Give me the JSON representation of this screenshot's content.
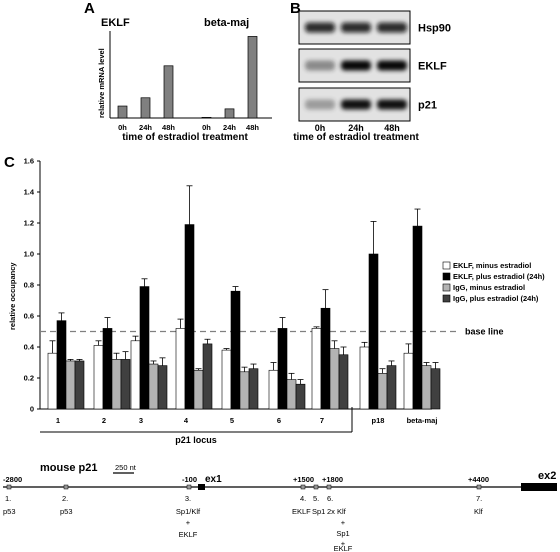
{
  "panel_labels": {
    "a": "A",
    "b": "B",
    "c": "C"
  },
  "chart_data": [
    {
      "type": "bar",
      "panel": "A",
      "groups": [
        {
          "name": "EKLF",
          "categories": [
            "0h",
            "24h",
            "48h"
          ],
          "values": [
            0.55,
            0.93,
            2.4
          ]
        },
        {
          "name": "beta-maj",
          "categories": [
            "0h",
            "24h",
            "48h"
          ],
          "values": [
            0.03,
            0.42,
            3.75
          ]
        }
      ],
      "xlabel": "time of estradiol treatment",
      "ylabel": "relative mRNA level",
      "ylim": [
        0,
        4
      ],
      "color": "#808080"
    },
    {
      "type": "bar",
      "panel": "C",
      "categories": [
        "1",
        "2",
        "3",
        "4",
        "5",
        "6",
        "7",
        "p18",
        "beta-maj"
      ],
      "series": [
        {
          "name": "EKLF, minus estradiol",
          "color": "#ffffff",
          "values": [
            0.36,
            0.41,
            0.44,
            0.52,
            0.38,
            0.25,
            0.52,
            0.4,
            0.36
          ],
          "errors": [
            0.08,
            0.03,
            0.03,
            0.06,
            0.01,
            0.05,
            0.01,
            0.03,
            0.06
          ]
        },
        {
          "name": "EKLF, plus estradiol (24h)",
          "color": "#000000",
          "values": [
            0.57,
            0.52,
            0.79,
            1.19,
            0.76,
            0.52,
            0.65,
            1.0,
            1.18
          ],
          "errors": [
            0.05,
            0.07,
            0.05,
            0.25,
            0.03,
            0.07,
            0.12,
            0.21,
            0.11
          ]
        },
        {
          "name": "IgG, minus estradiol",
          "color": "#b3b3b3",
          "values": [
            0.31,
            0.32,
            0.29,
            0.25,
            0.24,
            0.19,
            0.39,
            0.23,
            0.28
          ],
          "errors": [
            0.01,
            0.04,
            0.02,
            0.01,
            0.03,
            0.04,
            0.05,
            0.03,
            0.02
          ]
        },
        {
          "name": "IgG, plus estradiol (24h)",
          "color": "#404040",
          "values": [
            0.31,
            0.32,
            0.28,
            0.42,
            0.26,
            0.16,
            0.35,
            0.28,
            0.26
          ],
          "errors": [
            0.01,
            0.05,
            0.05,
            0.03,
            0.03,
            0.03,
            0.05,
            0.03,
            0.04
          ]
        }
      ],
      "ylabel": "relative occupancy",
      "ylim": [
        0,
        1.6
      ],
      "yticks": [
        "0",
        "0.2",
        "0.4",
        "0.6",
        "0.8",
        "1.0",
        "1.2",
        "1.4",
        "1.6"
      ],
      "reference_line": {
        "value": 0.5,
        "label": "base line",
        "style": "dashed"
      },
      "bracket_label": "p21 locus",
      "legend_position": "right"
    }
  ],
  "western_blot": {
    "bands": [
      "Hsp90",
      "EKLF",
      "p21"
    ],
    "lanes": [
      "0h",
      "24h",
      "48h"
    ],
    "xlabel": "time of estradiol treatment"
  },
  "locus_map": {
    "title": "mouse p21",
    "scale_label": "250 nt",
    "coordinates": [
      "-2800",
      "-100",
      "+1500",
      "+1800",
      "+4400"
    ],
    "exons": [
      "ex1",
      "ex2"
    ],
    "sites": [
      {
        "label": "1.",
        "factor": "p53"
      },
      {
        "label": "2.",
        "factor": "p53"
      },
      {
        "label": "3.",
        "factor": "Sp1/Klf",
        "extra": [
          "+",
          "EKLF"
        ]
      },
      {
        "label": "4.",
        "factor": "EKLF"
      },
      {
        "label": "5.",
        "factor": "Sp1"
      },
      {
        "label": "6.",
        "factor": "2x Klf",
        "extra": [
          "+",
          "Sp1",
          "+",
          "EKLF"
        ]
      },
      {
        "label": "7.",
        "factor": "Klf"
      }
    ]
  }
}
